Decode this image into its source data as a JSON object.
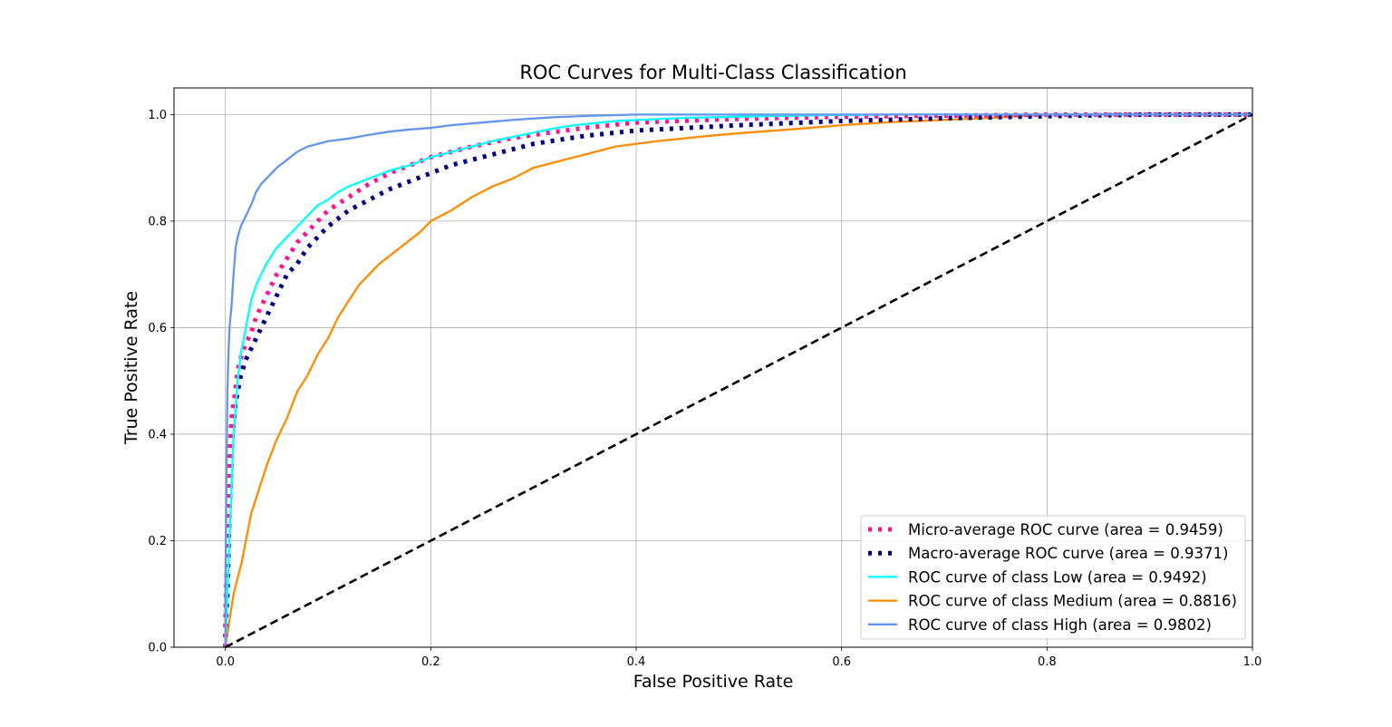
{
  "chart_data": {
    "type": "line",
    "title": "ROC Curves for Multi-Class Classification",
    "xlabel": "False Positive Rate",
    "ylabel": "True Positive Rate",
    "xlim": [
      -0.05,
      1.0
    ],
    "ylim": [
      0.0,
      1.05
    ],
    "xticks": [
      "0.0",
      "0.2",
      "0.4",
      "0.6",
      "0.8",
      "1.0"
    ],
    "yticks": [
      "0.0",
      "0.2",
      "0.4",
      "0.6",
      "0.8",
      "1.0"
    ],
    "grid": true,
    "legend_position": "lower-right",
    "series": [
      {
        "name": "Micro-average ROC curve (area = 0.9459)",
        "color": "#ff1493",
        "style": "dotted",
        "x": [
          0.0,
          0.0,
          0.002,
          0.004,
          0.006,
          0.009,
          0.012,
          0.016,
          0.02,
          0.025,
          0.03,
          0.04,
          0.05,
          0.06,
          0.07,
          0.08,
          0.09,
          0.1,
          0.12,
          0.14,
          0.16,
          0.18,
          0.2,
          0.22,
          0.24,
          0.26,
          0.28,
          0.3,
          0.35,
          0.4,
          0.5,
          0.6,
          0.7,
          0.8,
          0.9,
          1.0
        ],
        "y": [
          0.0,
          0.05,
          0.2,
          0.35,
          0.43,
          0.47,
          0.52,
          0.55,
          0.57,
          0.59,
          0.62,
          0.66,
          0.7,
          0.73,
          0.76,
          0.78,
          0.8,
          0.82,
          0.845,
          0.87,
          0.89,
          0.905,
          0.92,
          0.93,
          0.94,
          0.948,
          0.956,
          0.962,
          0.975,
          0.985,
          0.992,
          0.996,
          0.998,
          1.0,
          1.0,
          1.0
        ]
      },
      {
        "name": "Macro-average ROC curve (area = 0.9371)",
        "color": "#000080",
        "style": "dotted",
        "x": [
          0.0,
          0.0,
          0.002,
          0.004,
          0.007,
          0.01,
          0.015,
          0.02,
          0.03,
          0.04,
          0.05,
          0.06,
          0.07,
          0.08,
          0.09,
          0.1,
          0.12,
          0.14,
          0.16,
          0.18,
          0.2,
          0.22,
          0.25,
          0.28,
          0.3,
          0.35,
          0.4,
          0.5,
          0.6,
          0.7,
          0.8,
          0.9,
          1.0
        ],
        "y": [
          0.0,
          0.03,
          0.1,
          0.25,
          0.4,
          0.46,
          0.51,
          0.54,
          0.58,
          0.62,
          0.66,
          0.7,
          0.72,
          0.75,
          0.77,
          0.79,
          0.82,
          0.84,
          0.86,
          0.875,
          0.89,
          0.905,
          0.92,
          0.935,
          0.945,
          0.96,
          0.97,
          0.98,
          0.988,
          0.993,
          0.997,
          1.0,
          1.0
        ]
      },
      {
        "name": "ROC curve of class Low (area = 0.9492)",
        "color": "#00ffff",
        "style": "solid",
        "x": [
          0.0,
          0.002,
          0.004,
          0.006,
          0.008,
          0.01,
          0.012,
          0.015,
          0.018,
          0.02,
          0.025,
          0.03,
          0.035,
          0.04,
          0.05,
          0.06,
          0.07,
          0.08,
          0.09,
          0.1,
          0.11,
          0.12,
          0.14,
          0.16,
          0.18,
          0.2,
          0.22,
          0.24,
          0.26,
          0.28,
          0.3,
          0.32,
          0.34,
          0.38,
          0.45,
          0.55,
          0.65,
          0.75,
          0.85,
          1.0
        ],
        "y": [
          0.0,
          0.1,
          0.2,
          0.3,
          0.4,
          0.45,
          0.5,
          0.55,
          0.58,
          0.6,
          0.65,
          0.68,
          0.7,
          0.72,
          0.75,
          0.77,
          0.79,
          0.81,
          0.83,
          0.84,
          0.855,
          0.865,
          0.88,
          0.895,
          0.905,
          0.92,
          0.93,
          0.94,
          0.95,
          0.958,
          0.966,
          0.974,
          0.98,
          0.988,
          0.994,
          0.998,
          1.0,
          1.0,
          1.0,
          1.0
        ]
      },
      {
        "name": "ROC curve of class Medium (area = 0.8816)",
        "color": "#ff8c00",
        "style": "solid",
        "x": [
          0.0,
          0.004,
          0.008,
          0.012,
          0.016,
          0.02,
          0.025,
          0.03,
          0.035,
          0.04,
          0.05,
          0.06,
          0.07,
          0.08,
          0.09,
          0.1,
          0.11,
          0.12,
          0.13,
          0.14,
          0.15,
          0.16,
          0.17,
          0.18,
          0.19,
          0.2,
          0.22,
          0.24,
          0.26,
          0.28,
          0.3,
          0.32,
          0.35,
          0.38,
          0.42,
          0.46,
          0.5,
          0.55,
          0.6,
          0.65,
          0.7,
          0.75,
          0.8,
          0.9,
          1.0
        ],
        "y": [
          0.0,
          0.05,
          0.1,
          0.13,
          0.16,
          0.2,
          0.25,
          0.28,
          0.31,
          0.34,
          0.39,
          0.43,
          0.48,
          0.51,
          0.55,
          0.58,
          0.62,
          0.65,
          0.68,
          0.7,
          0.72,
          0.735,
          0.75,
          0.765,
          0.78,
          0.8,
          0.82,
          0.845,
          0.865,
          0.88,
          0.9,
          0.91,
          0.925,
          0.94,
          0.95,
          0.958,
          0.965,
          0.972,
          0.98,
          0.986,
          0.99,
          0.994,
          1.0,
          1.0,
          1.0
        ]
      },
      {
        "name": "ROC curve of class High (area = 0.9802)",
        "color": "#6495ed",
        "style": "solid",
        "x": [
          0.0,
          0.0,
          0.001,
          0.002,
          0.003,
          0.004,
          0.006,
          0.008,
          0.01,
          0.012,
          0.015,
          0.02,
          0.025,
          0.03,
          0.035,
          0.04,
          0.045,
          0.05,
          0.06,
          0.07,
          0.08,
          0.09,
          0.1,
          0.12,
          0.14,
          0.16,
          0.18,
          0.2,
          0.22,
          0.25,
          0.28,
          0.32,
          0.36,
          0.4,
          0.5,
          0.6,
          0.7,
          0.8,
          1.0
        ],
        "y": [
          0.0,
          0.1,
          0.3,
          0.48,
          0.55,
          0.6,
          0.64,
          0.7,
          0.75,
          0.77,
          0.79,
          0.81,
          0.83,
          0.855,
          0.87,
          0.88,
          0.89,
          0.9,
          0.915,
          0.93,
          0.94,
          0.945,
          0.95,
          0.955,
          0.962,
          0.968,
          0.972,
          0.975,
          0.98,
          0.985,
          0.99,
          0.995,
          0.998,
          1.0,
          1.0,
          1.0,
          1.0,
          1.0,
          1.0
        ]
      },
      {
        "name": "",
        "color": "#000000",
        "style": "dashed",
        "x": [
          0.0,
          1.0
        ],
        "y": [
          0.0,
          1.0
        ]
      }
    ]
  }
}
